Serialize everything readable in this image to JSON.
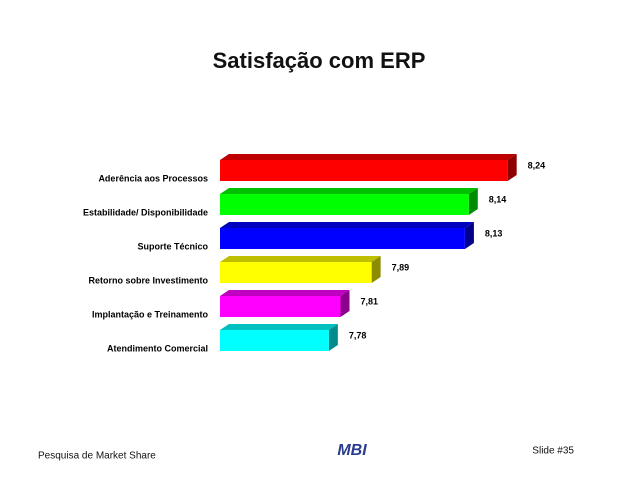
{
  "chart_data": {
    "type": "bar3d-horizontal",
    "title": "Satisfação com ERP",
    "categories": [
      "Aderência aos Processos",
      "Estabilidade/ Disponibilidade",
      "Suporte Técnico",
      "Retorno sobre Investimento",
      "Implantação e Treinamento",
      "Atendimento Comercial"
    ],
    "values": [
      8.24,
      8.14,
      8.13,
      7.89,
      7.81,
      7.78
    ],
    "value_labels": [
      "8,24",
      "8,14",
      "8,13",
      "7,89",
      "7,81",
      "7,78"
    ],
    "colors": [
      "#ff0000",
      "#00ff00",
      "#0000ff",
      "#ffff00",
      "#ff00ff",
      "#00ffff"
    ],
    "xlim": [
      7.5,
      8.3
    ]
  },
  "footer": {
    "source": "Pesquisa de Market Share",
    "logo": "MBI",
    "slide": "Slide #35"
  }
}
